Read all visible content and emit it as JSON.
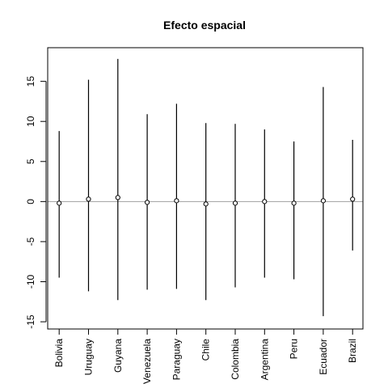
{
  "chart_data": {
    "type": "errorbar",
    "title": "Efecto espacial",
    "xlabel": "",
    "ylabel": "",
    "categories": [
      "Bolivia",
      "Uruguay",
      "Guyana",
      "Venezuela",
      "Paraguay",
      "Chile",
      "Colombia",
      "Argentina",
      "Peru",
      "Ecuador",
      "Brazil"
    ],
    "series": [
      {
        "estimate": [
          -0.2,
          0.3,
          0.5,
          -0.1,
          0.1,
          -0.3,
          -0.2,
          0.0,
          -0.2,
          0.1,
          0.3
        ],
        "lower": [
          -9.5,
          -11.2,
          -12.3,
          -11.0,
          -10.9,
          -12.3,
          -10.7,
          -9.5,
          -9.7,
          -14.3,
          -6.1
        ],
        "upper": [
          8.8,
          15.2,
          17.8,
          10.9,
          12.2,
          9.8,
          9.7,
          9.0,
          7.5,
          14.3,
          7.7
        ]
      }
    ],
    "yticks": [
      -15,
      -10,
      -5,
      0,
      5,
      10,
      15
    ],
    "ylim": [
      -15.9,
      19.2
    ],
    "reference_line": 0,
    "reference_line_color": "#a0a0a0",
    "point_style": "open-circle",
    "grid": false,
    "legend": "none"
  }
}
